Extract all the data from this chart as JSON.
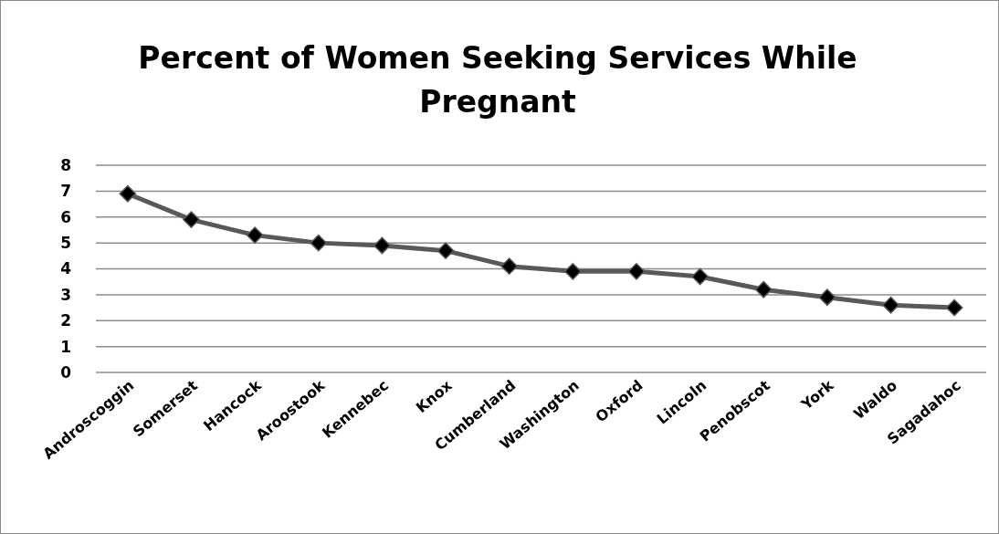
{
  "chart_data": {
    "type": "line",
    "title": "Percent of Women Seeking Services While Pregnant",
    "categories": [
      "Androscoggin",
      "Somerset",
      "Hancock",
      "Aroostook",
      "Kennebec",
      "Knox",
      "Cumberland",
      "Washington",
      "Oxford",
      "Lincoln",
      "Penobscot",
      "York",
      "Waldo",
      "Sagadahoc"
    ],
    "series": [
      {
        "color": "#595959",
        "values": [
          6.9,
          5.9,
          5.3,
          5.0,
          4.9,
          4.7,
          4.1,
          3.9,
          3.9,
          3.7,
          3.2,
          2.9,
          2.6,
          2.5
        ]
      }
    ],
    "ylim": [
      0,
      8
    ],
    "yticks": [
      0,
      1,
      2,
      3,
      4,
      5,
      6,
      7,
      8
    ],
    "grid": "y",
    "marker": "diamond"
  }
}
